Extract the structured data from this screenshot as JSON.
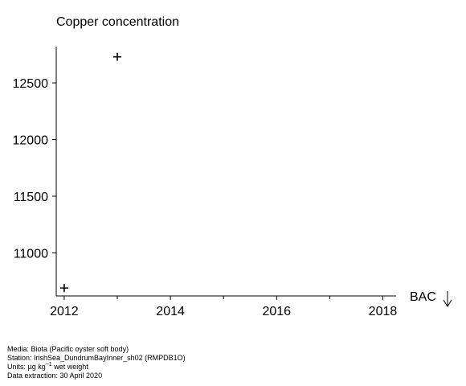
{
  "chart_data": {
    "type": "scatter",
    "title": "Copper concentration",
    "xlim": [
      2011.85,
      2018.25
    ],
    "ylim": [
      10620,
      12820
    ],
    "x_ticks": [
      2012,
      2014,
      2016,
      2018
    ],
    "x_minor_ticks": [
      2013,
      2015,
      2017
    ],
    "y_ticks": [
      11000,
      11500,
      12000,
      12500
    ],
    "points": [
      {
        "x": 2012,
        "y": 10690
      },
      {
        "x": 2013,
        "y": 12730
      }
    ],
    "marker": "+",
    "annotation": {
      "label": "BAC",
      "symbol": "arrow-down"
    },
    "grid": false
  },
  "footer": {
    "media": "Media: Biota (Pacific oyster soft body)",
    "station": "Station: IrishSea_DundrumBayInner_sh02 (RMPDB1O)",
    "units_prefix": "Units:  µg kg",
    "units_sup": "−1",
    "units_suffix": " wet weight",
    "extraction": "Data extraction: 30 April 2020"
  }
}
